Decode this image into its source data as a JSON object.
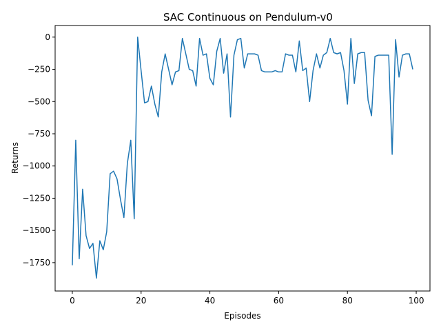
{
  "chart_data": {
    "type": "line",
    "title": "SAC Continuous on Pendulum-v0",
    "xlabel": "Episodes",
    "ylabel": "Returns",
    "xlim": [
      -5,
      104
    ],
    "ylim": [
      -1970,
      90
    ],
    "xticks": [
      0,
      20,
      40,
      60,
      80,
      100
    ],
    "xtick_labels": [
      "0",
      "20",
      "40",
      "60",
      "80",
      "100"
    ],
    "yticks": [
      0,
      -250,
      -500,
      -750,
      -1000,
      -1250,
      -1500,
      -1750
    ],
    "ytick_labels": [
      "0",
      "−250",
      "−500",
      "−750",
      "−1000",
      "−1250",
      "−1500",
      "−1750"
    ],
    "grid": false,
    "line_color": "#1f77b4",
    "series": [
      {
        "x": [
          0,
          1,
          2,
          3,
          4,
          5,
          6,
          7,
          8,
          9,
          10,
          11,
          12,
          13,
          14,
          15,
          16,
          17,
          18,
          19,
          20,
          21,
          22,
          23,
          24,
          25,
          26,
          27,
          28,
          29,
          30,
          31,
          32,
          33,
          34,
          35,
          36,
          37,
          38,
          39,
          40,
          41,
          42,
          43,
          44,
          45,
          46,
          47,
          48,
          49,
          50,
          51,
          52,
          53,
          54,
          55,
          56,
          57,
          58,
          59,
          60,
          61,
          62,
          63,
          64,
          65,
          66,
          67,
          68,
          69,
          70,
          71,
          72,
          73,
          74,
          75,
          76,
          77,
          78,
          79,
          80,
          81,
          82,
          83,
          84,
          85,
          86,
          87,
          88,
          89,
          90,
          91,
          92,
          93,
          94,
          95,
          96,
          97,
          98,
          99
        ],
        "values": [
          -1770,
          -800,
          -1720,
          -1180,
          -1540,
          -1640,
          -1600,
          -1870,
          -1580,
          -1650,
          -1510,
          -1060,
          -1040,
          -1100,
          -1260,
          -1400,
          -980,
          -800,
          -1410,
          0,
          -260,
          -510,
          -500,
          -380,
          -520,
          -620,
          -270,
          -130,
          -250,
          -370,
          -270,
          -260,
          -10,
          -130,
          -250,
          -260,
          -380,
          -10,
          -140,
          -130,
          -320,
          -370,
          -110,
          -10,
          -280,
          -130,
          -620,
          -140,
          -20,
          -10,
          -240,
          -130,
          -130,
          -130,
          -140,
          -260,
          -270,
          -270,
          -270,
          -260,
          -270,
          -270,
          -130,
          -140,
          -140,
          -270,
          -30,
          -260,
          -240,
          -500,
          -260,
          -130,
          -240,
          -140,
          -120,
          -10,
          -120,
          -130,
          -120,
          -260,
          -520,
          -10,
          -360,
          -130,
          -120,
          -120,
          -490,
          -610,
          -150,
          -140,
          -140,
          -140,
          -140,
          -910,
          -20,
          -310,
          -140,
          -130,
          -130,
          -250
        ]
      }
    ]
  }
}
